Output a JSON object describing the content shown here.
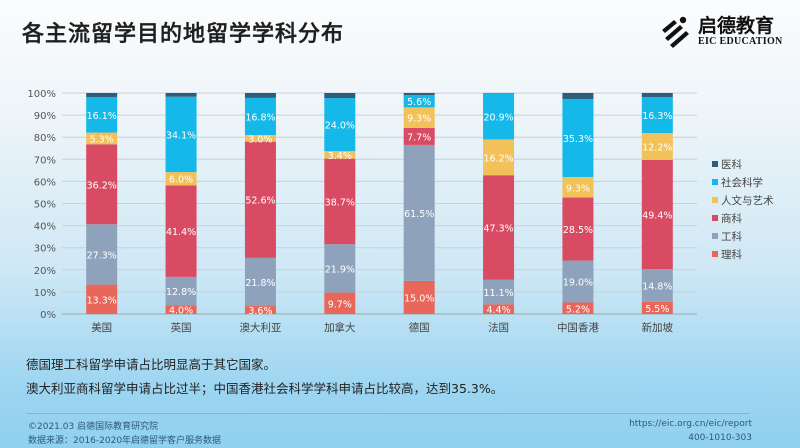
{
  "title": "各主流留学目的地留学学科分布",
  "logo": {
    "cn": "启德教育",
    "en": "EIC EDUCATION"
  },
  "chart_data": {
    "type": "stacked-bar",
    "categories": [
      "美国",
      "英国",
      "澳大利亚",
      "加拿大",
      "德国",
      "法国",
      "中国香港",
      "新加坡"
    ],
    "ylim": [
      0,
      100
    ],
    "yticks": [
      "0%",
      "10%",
      "20%",
      "30%",
      "40%",
      "50%",
      "60%",
      "70%",
      "80%",
      "90%",
      "100%"
    ],
    "grid": true,
    "legend_position": "right",
    "series": [
      {
        "name": "理科",
        "color": "#e8675a",
        "values": [
          13.3,
          4.0,
          3.6,
          9.7,
          15.0,
          4.4,
          5.2,
          5.5
        ],
        "labels": [
          "13.3%",
          "4.0%",
          "3.6%",
          "9.7%",
          "15.0%",
          "4.4%",
          "5.2%",
          "5.5%"
        ]
      },
      {
        "name": "工科",
        "color": "#8ea3bb",
        "values": [
          27.3,
          12.8,
          21.8,
          21.9,
          61.5,
          11.1,
          19.0,
          14.8
        ],
        "labels": [
          "27.3%",
          "12.8%",
          "21.8%",
          "21.9%",
          "61.5%",
          "11.1%",
          "19.0%",
          "14.8%"
        ]
      },
      {
        "name": "商科",
        "color": "#d94b63",
        "values": [
          36.2,
          41.4,
          52.6,
          38.7,
          7.7,
          47.3,
          28.5,
          49.4
        ],
        "labels": [
          "36.2%",
          "41.4%",
          "52.6%",
          "38.7%",
          "7.7%",
          "47.3%",
          "28.5%",
          "49.4%"
        ]
      },
      {
        "name": "人文与艺术",
        "color": "#f3c15a",
        "values": [
          5.3,
          6.0,
          3.0,
          3.4,
          9.3,
          16.2,
          9.3,
          12.2
        ],
        "labels": [
          "5.3%",
          "6.0%",
          "3.0%",
          "3.4%",
          "9.3%",
          "16.2%",
          "9.3%",
          "12.2%"
        ]
      },
      {
        "name": "社会科学",
        "color": "#14b8e9",
        "values": [
          16.1,
          34.1,
          16.8,
          24.0,
          5.6,
          20.9,
          35.3,
          16.3
        ],
        "labels": [
          "16.1%",
          "34.1%",
          "16.8%",
          "24.0%",
          "5.6%",
          "20.9%",
          "35.3%",
          "16.3%"
        ]
      },
      {
        "name": "医科",
        "color": "#2e5c7c",
        "values": [
          1.8,
          1.7,
          2.2,
          2.3,
          0.9,
          0.1,
          2.7,
          1.8
        ],
        "labels": [
          "",
          "",
          "",
          "",
          "",
          "",
          "",
          ""
        ]
      }
    ]
  },
  "notes": [
    "德国理工科留学申请占比明显高于其它国家。",
    "澳大利亚商科留学申请占比过半；中国香港社会科学学科申请占比较高，达到35.3%。"
  ],
  "footer": {
    "copyright": "©2021.03 启德国际教育研究院",
    "source": "数据来源：2016-2020年启德留学客户服务数据",
    "url": "https://eic.org.cn/eic/report",
    "phone": "400-1010-303"
  }
}
